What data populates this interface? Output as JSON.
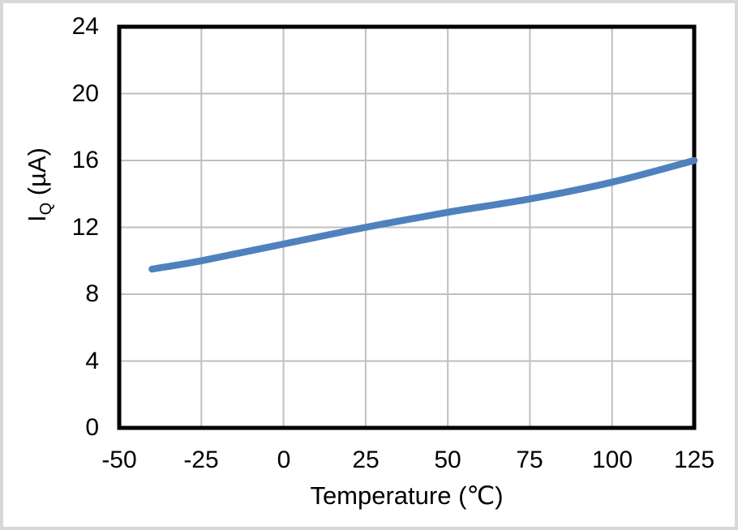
{
  "frame": {
    "background_color": "#ffffff",
    "border_color": "#d8d8d8"
  },
  "chart_data": {
    "type": "line",
    "title": "",
    "xlabel": "Temperature (℃)",
    "ylabel": "IQ (µA)",
    "ylabel_parts": {
      "main": "I",
      "sub": "Q",
      "rest": " (µA)"
    },
    "x": [
      -40,
      -25,
      0,
      25,
      50,
      75,
      100,
      125
    ],
    "series": [
      {
        "name": "IQ",
        "values": [
          9.5,
          10.0,
          11.0,
          12.0,
          12.9,
          13.7,
          14.7,
          16.0
        ],
        "color": "#4F81BD",
        "smooth": true
      }
    ],
    "xlim": [
      -50,
      125
    ],
    "ylim": [
      0,
      24
    ],
    "x_ticks": [
      "-50",
      "-25",
      "0",
      "25",
      "50",
      "75",
      "100",
      "125"
    ],
    "x_tick_values": [
      -50,
      -25,
      0,
      25,
      50,
      75,
      100,
      125
    ],
    "y_ticks": [
      "24",
      "20",
      "16",
      "12",
      "8",
      "4",
      "0"
    ],
    "y_tick_values": [
      24,
      20,
      16,
      12,
      8,
      4,
      0
    ],
    "grid": true,
    "grid_color": "#BFBFBF",
    "axis_border_color": "#000000",
    "legend": "none"
  }
}
